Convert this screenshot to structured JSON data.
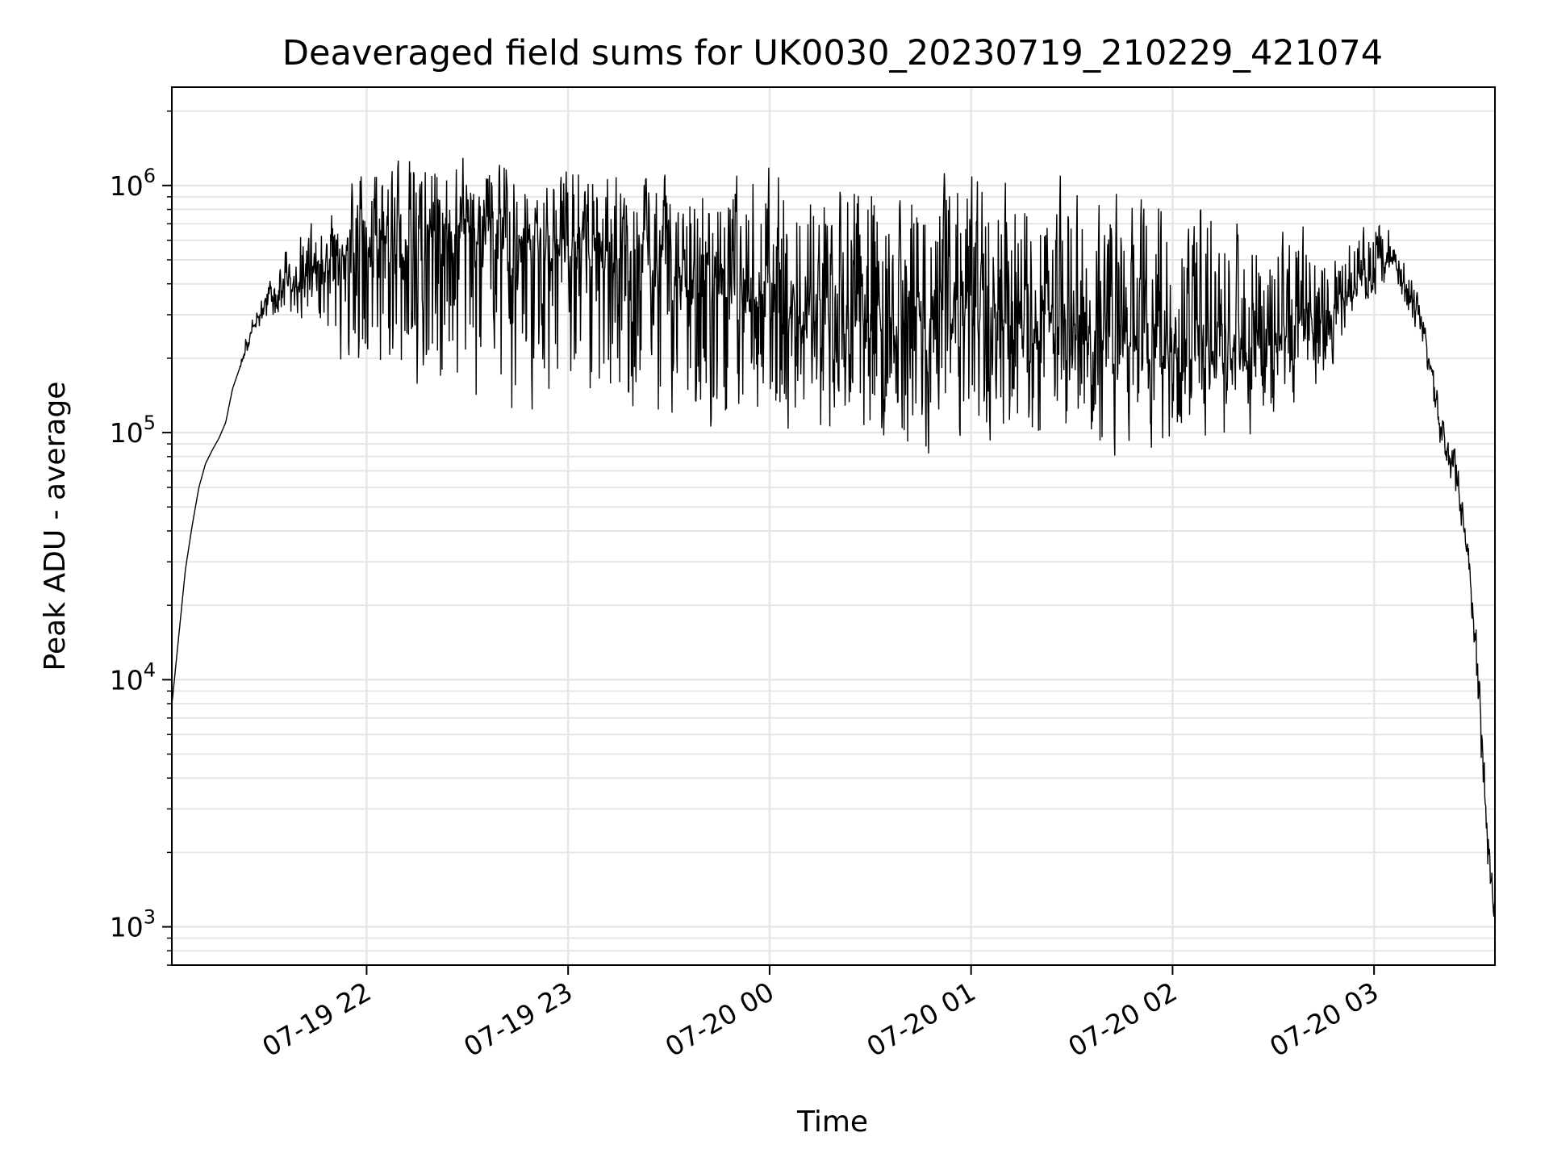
{
  "chart_data": {
    "type": "line",
    "title": "Deaveraged field sums for UK0030_20230719_210229_421074",
    "xlabel": "Time",
    "ylabel": "Peak ADU - average",
    "x_scale": "time",
    "y_scale": "log",
    "xlim": [
      "2023-07-19 21:02",
      "2023-07-20 03:36"
    ],
    "ylim": [
      700,
      2500000
    ],
    "x_ticks": [
      {
        "t": "2023-07-19 22:00",
        "label": "07-19 22"
      },
      {
        "t": "2023-07-19 23:00",
        "label": "07-19 23"
      },
      {
        "t": "2023-07-20 00:00",
        "label": "07-20 00"
      },
      {
        "t": "2023-07-20 01:00",
        "label": "07-20 01"
      },
      {
        "t": "2023-07-20 02:00",
        "label": "07-20 02"
      },
      {
        "t": "2023-07-20 03:00",
        "label": "07-20 03"
      }
    ],
    "y_ticks": [
      {
        "value": 1000,
        "base": "10",
        "exp": "3"
      },
      {
        "value": 10000,
        "base": "10",
        "exp": "4"
      },
      {
        "value": 100000,
        "base": "10",
        "exp": "5"
      },
      {
        "value": 1000000,
        "base": "10",
        "exp": "6"
      }
    ],
    "grid": true,
    "line_color": "#000000",
    "grid_color": "#e6e6e6",
    "series": [
      {
        "x": [
          "2023-07-19 21:02",
          "2023-07-19 21:04",
          "2023-07-19 21:06",
          "2023-07-19 21:08",
          "2023-07-19 21:10",
          "2023-07-19 21:12",
          "2023-07-19 21:14",
          "2023-07-19 21:16",
          "2023-07-19 21:18",
          "2023-07-19 21:20",
          "2023-07-19 21:22",
          "2023-07-19 21:24",
          "2023-07-19 21:26",
          "2023-07-19 21:28",
          "2023-07-19 21:30",
          "2023-07-19 21:35",
          "2023-07-19 21:40",
          "2023-07-19 21:45",
          "2023-07-19 21:50",
          "2023-07-19 21:55",
          "2023-07-19 22:00",
          "2023-07-19 22:15",
          "2023-07-19 22:30",
          "2023-07-19 22:45",
          "2023-07-19 23:00",
          "2023-07-19 23:15",
          "2023-07-19 23:30",
          "2023-07-19 23:45",
          "2023-07-20 00:00",
          "2023-07-20 00:15",
          "2023-07-20 00:30",
          "2023-07-20 00:45",
          "2023-07-20 01:00",
          "2023-07-20 01:15",
          "2023-07-20 01:30",
          "2023-07-20 01:45",
          "2023-07-20 02:00",
          "2023-07-20 02:15",
          "2023-07-20 02:30",
          "2023-07-20 02:45",
          "2023-07-20 02:55",
          "2023-07-20 03:00",
          "2023-07-20 03:05",
          "2023-07-20 03:10",
          "2023-07-20 03:15",
          "2023-07-20 03:20",
          "2023-07-20 03:25",
          "2023-07-20 03:28",
          "2023-07-20 03:30",
          "2023-07-20 03:32",
          "2023-07-20 03:34",
          "2023-07-20 03:36"
        ],
        "y": [
          8000,
          15000,
          28000,
          42000,
          60000,
          75000,
          85000,
          95000,
          110000,
          150000,
          180000,
          220000,
          260000,
          300000,
          340000,
          400000,
          420000,
          460000,
          520000,
          560000,
          600000,
          650000,
          680000,
          620000,
          550000,
          520000,
          450000,
          400000,
          350000,
          320000,
          310000,
          300000,
          290000,
          280000,
          260000,
          240000,
          220000,
          200000,
          220000,
          300000,
          380000,
          450000,
          500000,
          400000,
          250000,
          110000,
          60000,
          30000,
          15000,
          6000,
          2000,
          1200
        ],
        "envelope_low": [
          8000,
          15000,
          28000,
          42000,
          60000,
          75000,
          85000,
          95000,
          110000,
          150000,
          180000,
          200000,
          240000,
          260000,
          280000,
          280000,
          260000,
          260000,
          200000,
          140000,
          120000,
          100000,
          90000,
          80000,
          100000,
          90000,
          85000,
          80000,
          90000,
          70000,
          75000,
          70000,
          70000,
          75000,
          75000,
          70000,
          75000,
          80000,
          90000,
          150000,
          300000,
          350000,
          400000,
          300000,
          200000,
          80000,
          50000,
          25000,
          12000,
          4000,
          1500,
          1000
        ],
        "envelope_high": [
          8000,
          15000,
          28000,
          42000,
          60000,
          75000,
          85000,
          95000,
          110000,
          150000,
          180000,
          250000,
          300000,
          350000,
          400000,
          600000,
          700000,
          800000,
          950000,
          1200000,
          1400000,
          1500000,
          1500000,
          1500000,
          1400000,
          1400000,
          1300000,
          1300000,
          1400000,
          1300000,
          1400000,
          1300000,
          1300000,
          1200000,
          1200000,
          1100000,
          1200000,
          1000000,
          850000,
          700000,
          750000,
          800000,
          700000,
          500000,
          300000,
          130000,
          80000,
          40000,
          20000,
          8000,
          2500,
          1400
        ]
      }
    ]
  }
}
